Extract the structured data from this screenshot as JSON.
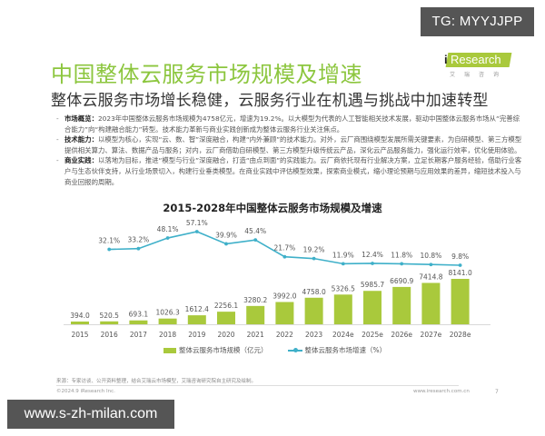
{
  "watermarks": {
    "top": "TG: MYYJJPP",
    "bottom": "www.s-zh-milan.com"
  },
  "header": {
    "title": "中国整体云服务市场规模及增速",
    "subtitle": "整体云服务市场增长稳健，云服务行业在机遇与挑战中加速转型",
    "logo": {
      "brand": "Research",
      "prefix": "i",
      "cn": "艾瑞咨询"
    }
  },
  "bullets": [
    {
      "label": "市场概览：",
      "text": "2023年中国整体云服务市场规模为4758亿元，增速为19.2%。以大模型为代表的人工智能相关技术发展，驱动中国整体云服务市场从“完善综合能力”向“构建融合能力”转型。技术能力革新与商业实践创新成为整体云服务行业关注焦点。"
    },
    {
      "label": "技术能力：",
      "text": "以模型为核心，实现“云、数、智”深度融合，构建“内外兼顾”的技术能力。对外，云厂商围绕模型发展所需关键要素，为自研模型、第三方模型提供相关算力、算法、数据产品与服务；对内，云厂商借助自研模型、第三方模型升级传统云产品，深化云产品服务能力，强化运行效率，优化使用体验。"
    },
    {
      "label": "商业实践：",
      "text": "以落地为目标，推进“模型与行业”深度融合，打造“由点到面”的实践能力。云厂商依托现有行业解决方案，立足长期客户服务经验，借助行业客户与生态伙伴支持，从行业场景切入，构建行业垂类模型。在商业实践中评估模型效果，探索商业模式，缩小理论预期与应用效果的差异，缩短技术投入与商业回报的周期。"
    }
  ],
  "chart_data": {
    "type": "bar",
    "title": "2015-2028年中国整体云服务市场规模及增速",
    "categories": [
      "2015",
      "2016",
      "2017",
      "2018",
      "2019",
      "2020",
      "2021",
      "2022",
      "2023",
      "2024e",
      "2025e",
      "2026e",
      "2027e",
      "2028e"
    ],
    "series": [
      {
        "name": "整体云服务市场规模（亿元）",
        "type": "bar",
        "color": "#a9c93c",
        "values": [
          394.0,
          520.5,
          693.1,
          1026.3,
          1612.4,
          2256.1,
          3280.2,
          3992.0,
          4758.0,
          5326.5,
          5985.7,
          6690.9,
          7414.8,
          8141.0
        ],
        "labels": [
          "394.0",
          "520.5",
          "693.1",
          "1026.3",
          "1612.4",
          "2256.1",
          "3280.2",
          "3992.0",
          "4758.0",
          "5326.5",
          "5985.7",
          "6690.9",
          "7414.8",
          "8141.0"
        ]
      },
      {
        "name": "整体云服务市场增速（%）",
        "type": "line",
        "color": "#3fb0c9",
        "values": [
          null,
          32.1,
          33.2,
          48.1,
          57.1,
          39.9,
          45.4,
          21.7,
          19.2,
          11.9,
          12.4,
          11.8,
          10.8,
          9.8
        ],
        "labels": [
          "",
          "32.1%",
          "33.2%",
          "48.1%",
          "57.1%",
          "39.9%",
          "45.4%",
          "21.7%",
          "19.2%",
          "11.9%",
          "12.4%",
          "11.8%",
          "10.8%",
          "9.8%"
        ]
      }
    ],
    "xlabel": "",
    "ylabel": "",
    "grid": false,
    "legend_position": "bottom"
  },
  "legend": {
    "bar": "整体云服务市场规模（亿元）",
    "line": "整体云服务市场增速（%）"
  },
  "footer": {
    "source": "来源：专家访谈、公开资料整理，结合艾瑞云市场模型，艾瑞咨询研究院自主研究及绘制。",
    "copyright": "©2024.9 iResearch Inc.",
    "site": "www.iresearch.com.cn",
    "page": "7"
  }
}
